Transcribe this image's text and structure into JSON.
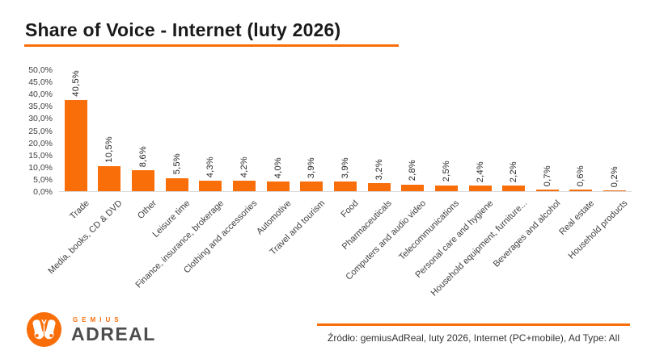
{
  "header": {
    "title": "Share of Voice - Internet (luty 2026)"
  },
  "chart_data": {
    "type": "bar",
    "title": "Share of Voice - Internet (luty 2026)",
    "categories": [
      "Trade",
      "Media, books, CD & DVD",
      "Other",
      "Leisure time",
      "Finance, insurance, brokerage",
      "Clothing and accessories",
      "Automotive",
      "Travel and tourism",
      "Food",
      "Pharmaceuticals",
      "Computers and audio video",
      "Telecommunications",
      "Personal care and hygiene",
      "Household equipment, furniture...",
      "Beverages and alcohol",
      "Real estate",
      "Household products"
    ],
    "values": [
      40.5,
      10.5,
      8.6,
      5.5,
      4.3,
      4.2,
      4.0,
      3.9,
      3.9,
      3.2,
      2.8,
      2.5,
      2.4,
      2.2,
      0.7,
      0.6,
      0.2
    ],
    "value_labels": [
      "40,5%",
      "10,5%",
      "8,6%",
      "5,5%",
      "4,3%",
      "4,2%",
      "4,0%",
      "3,9%",
      "3,9%",
      "3,2%",
      "2,8%",
      "2,5%",
      "2,4%",
      "2,2%",
      "0,7%",
      "0,6%",
      "0,2%"
    ],
    "y_ticks": [
      "0,0%",
      "5,0%",
      "10,0%",
      "15,0%",
      "20,0%",
      "25,0%",
      "30,0%",
      "35,0%",
      "40,0%",
      "45,0%",
      "50,0%"
    ],
    "ylim": [
      0,
      50
    ],
    "xlabel": "",
    "ylabel": "",
    "grid": false,
    "legend": "none",
    "bar_color": "#F96E09",
    "value_label_rotation": -90,
    "category_label_rotation": -45
  },
  "footer": {
    "logo_top": "GEMIUS",
    "logo_main": "ADREAL",
    "source": "Źródło: gemiusAdReal, luty 2026, Internet (PC+mobile), Ad Type: All"
  },
  "colors": {
    "accent_orange": "#F96E09",
    "title_ink": "#1a1a1a",
    "axis_text": "#404040",
    "baseline": "#d9d9d9"
  }
}
